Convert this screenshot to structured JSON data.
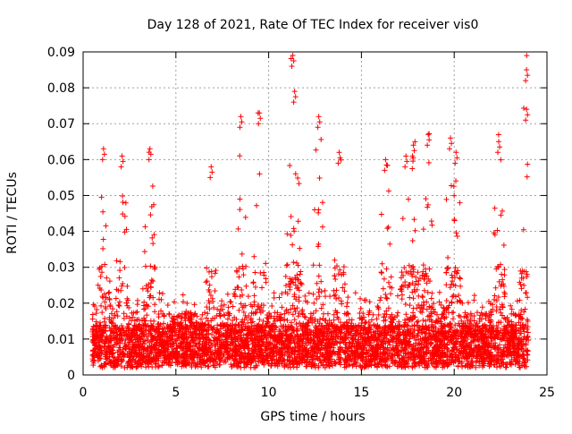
{
  "chart_data": {
    "type": "scatter",
    "title": "Day 128 of 2021, Rate Of TEC Index for receiver vis0",
    "xlabel": "GPS time / hours",
    "ylabel": "ROTI / TECUs",
    "xlim": [
      0,
      25
    ],
    "ylim": [
      0,
      0.09
    ],
    "x_ticks": [
      0,
      5,
      10,
      15,
      20,
      25
    ],
    "x_tick_labels": [
      "0",
      "5",
      "10",
      "15",
      "20",
      "25"
    ],
    "y_ticks": [
      0,
      0.01,
      0.02,
      0.03,
      0.04,
      0.05,
      0.06,
      0.07,
      0.08,
      0.09
    ],
    "y_tick_labels": [
      "0",
      "0.01",
      "0.02",
      "0.03",
      "0.04",
      "0.05",
      "0.06",
      "0.07",
      "0.08",
      "0.09"
    ],
    "grid": true,
    "marker": "+",
    "color": "#ff0000",
    "x_range_of_data": [
      0.5,
      24.0
    ],
    "peaks": [
      {
        "x": 1.1,
        "y": 0.063
      },
      {
        "x": 2.1,
        "y": 0.061
      },
      {
        "x": 3.6,
        "y": 0.063
      },
      {
        "x": 6.9,
        "y": 0.058
      },
      {
        "x": 8.5,
        "y": 0.072
      },
      {
        "x": 9.5,
        "y": 0.073
      },
      {
        "x": 11.3,
        "y": 0.089
      },
      {
        "x": 11.4,
        "y": 0.079
      },
      {
        "x": 12.7,
        "y": 0.072
      },
      {
        "x": 13.8,
        "y": 0.062
      },
      {
        "x": 16.3,
        "y": 0.06
      },
      {
        "x": 17.4,
        "y": 0.061
      },
      {
        "x": 17.8,
        "y": 0.064
      },
      {
        "x": 18.6,
        "y": 0.067
      },
      {
        "x": 19.8,
        "y": 0.066
      },
      {
        "x": 20.1,
        "y": 0.062
      },
      {
        "x": 22.4,
        "y": 0.065
      },
      {
        "x": 23.9,
        "y": 0.085
      },
      {
        "x": 23.9,
        "y": 0.074
      }
    ]
  }
}
